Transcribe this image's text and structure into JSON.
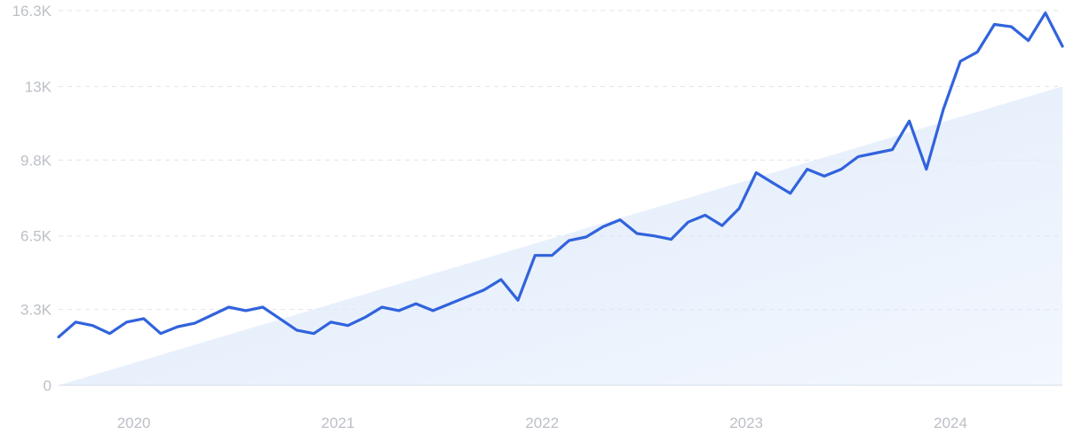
{
  "chart_data": {
    "type": "line",
    "title": "",
    "xlabel": "",
    "ylabel": "",
    "x_range": [
      "2019-09",
      "2024-08"
    ],
    "ylim": [
      0,
      16300
    ],
    "y_ticks": [
      {
        "value": 0,
        "label": "0"
      },
      {
        "value": 3300,
        "label": "3.3K"
      },
      {
        "value": 6500,
        "label": "6.5K"
      },
      {
        "value": 9800,
        "label": "9.8K"
      },
      {
        "value": 13000,
        "label": "13K"
      },
      {
        "value": 16300,
        "label": "16.3K"
      }
    ],
    "x_ticks": [
      {
        "value": "2020-01",
        "label": "2020"
      },
      {
        "value": "2021-01",
        "label": "2021"
      },
      {
        "value": "2022-01",
        "label": "2022"
      },
      {
        "value": "2023-01",
        "label": "2023"
      },
      {
        "value": "2024-01",
        "label": "2024"
      }
    ],
    "grid": true,
    "legend": "none",
    "series": [
      {
        "x": [
          "2019-09",
          "2019-10",
          "2019-11",
          "2019-12",
          "2020-01",
          "2020-02",
          "2020-03",
          "2020-04",
          "2020-05",
          "2020-06",
          "2020-07",
          "2020-08",
          "2020-09",
          "2020-10",
          "2020-11",
          "2020-12",
          "2021-01",
          "2021-02",
          "2021-03",
          "2021-04",
          "2021-05",
          "2021-06",
          "2021-07",
          "2021-08",
          "2021-09",
          "2021-10",
          "2021-11",
          "2021-12",
          "2022-01",
          "2022-02",
          "2022-03",
          "2022-04",
          "2022-05",
          "2022-06",
          "2022-07",
          "2022-08",
          "2022-09",
          "2022-10",
          "2022-11",
          "2022-12",
          "2023-01",
          "2023-02",
          "2023-03",
          "2023-04",
          "2023-05",
          "2023-06",
          "2023-07",
          "2023-08",
          "2023-09",
          "2023-10",
          "2023-11",
          "2023-12",
          "2024-01",
          "2024-02",
          "2024-03",
          "2024-04",
          "2024-05",
          "2024-06",
          "2024-07",
          "2024-08"
        ],
        "values": [
          2100,
          2750,
          2600,
          2250,
          2750,
          2900,
          2250,
          2550,
          2700,
          3050,
          3400,
          3250,
          3400,
          2900,
          2400,
          2250,
          2750,
          2600,
          2950,
          3400,
          3250,
          3550,
          3250,
          3550,
          3850,
          4150,
          4600,
          3700,
          5650,
          5650,
          6300,
          6450,
          6900,
          7200,
          6600,
          6500,
          6350,
          7100,
          7400,
          6950,
          7700,
          9250,
          8800,
          8350,
          9400,
          9100,
          9400,
          9950,
          10100,
          10250,
          11500,
          9400,
          12000,
          14100,
          14500,
          15700,
          15600,
          15000,
          16200,
          14750
        ],
        "color": "#3163dc"
      }
    ],
    "trend_area": {
      "x": [
        "2019-09",
        "2024-08"
      ],
      "values": [
        0,
        13000
      ],
      "color": "#dde9fb"
    },
    "colors": {
      "line": "#3163dc",
      "grid": "#e1e4ea",
      "tick_text": "#bcc0c7",
      "axis_line": "#d6dde8"
    }
  }
}
